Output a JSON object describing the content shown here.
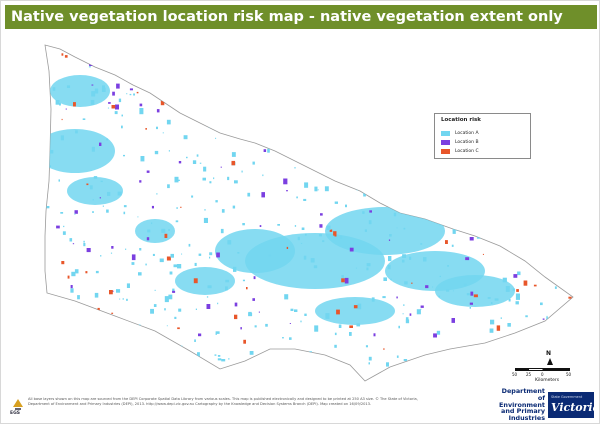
{
  "title": "Native vegetation location risk map - native vegetation extent only",
  "legend": {
    "title": "Location risk",
    "items": [
      {
        "label": "Location A",
        "color": "#72d6f0"
      },
      {
        "label": "Location B",
        "color": "#7b3fe0"
      },
      {
        "label": "Location C",
        "color": "#e8562a"
      }
    ]
  },
  "north_label": "N",
  "scale": {
    "ticks": [
      "50",
      "25",
      "0",
      "50"
    ],
    "unit": "Kilometers"
  },
  "footer": {
    "disclaimer": "All base layers shown on this map are sourced from the DEPI Corporate Spatial Data Library from various scales. This map is published electronically and designed to be printed at 250 A3 size. © The State of Victoria, Department of Environment and Primary Industries (DEPI), 2013. http://www.depi.vic.gov.au   Cartography by the Knowledge and Decision Systems Branch (DEPI). Map created on 16/09/2013.",
    "logo_left_text": "EGS",
    "dept_name": "Department of Environment and Primary Industries",
    "badge_small": "State Government",
    "badge_main": "Victoria"
  },
  "colors": {
    "title_bar": "#6f8f2a",
    "state_fill": "#ffffff",
    "state_outline": "#9a9a9a",
    "dept_blue": "#0a2a74"
  }
}
